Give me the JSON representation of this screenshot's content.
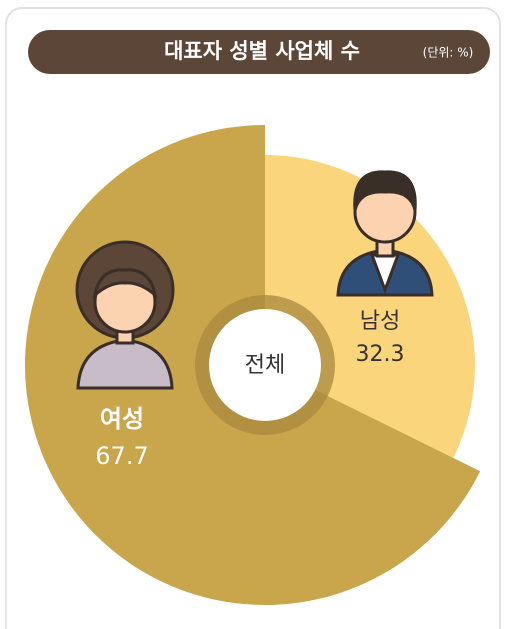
{
  "chart_data": {
    "type": "pie",
    "title": "대표자 성별 사업체 수",
    "unit_note": "(단위: %)",
    "center_label": "전체",
    "categories": [
      "남성",
      "여성"
    ],
    "values": [
      32.3,
      67.7
    ],
    "colors": [
      "#fad57c",
      "#c9a54c"
    ]
  }
}
